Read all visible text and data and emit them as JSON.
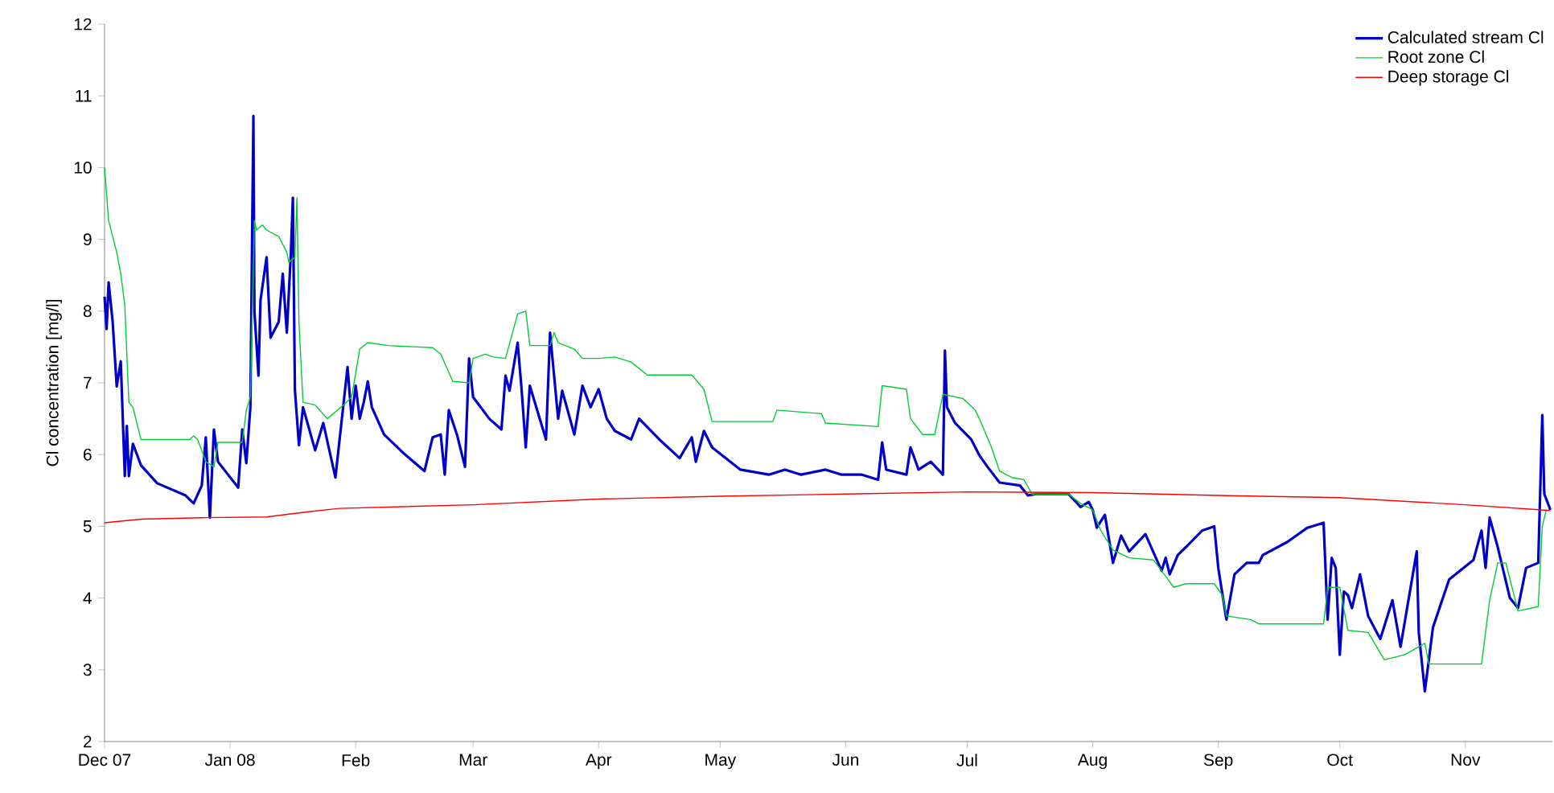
{
  "chart_data": {
    "type": "line",
    "ylabel": "Cl concentration [mg/l]",
    "xlim": [
      "2007-12-01",
      "2008-11-22T12:00"
    ],
    "ylim": [
      2,
      12
    ],
    "xticks": [
      {
        "value": "2007-12-01",
        "label": "Dec 07"
      },
      {
        "value": "2008-01-01",
        "label": "Jan 08"
      },
      {
        "value": "2008-02-01",
        "label": "Feb"
      },
      {
        "value": "2008-03-01",
        "label": "Mar"
      },
      {
        "value": "2008-04-01",
        "label": "Apr"
      },
      {
        "value": "2008-05-01",
        "label": "May"
      },
      {
        "value": "2008-06-01",
        "label": "Jun"
      },
      {
        "value": "2008-07-01",
        "label": "Jul"
      },
      {
        "value": "2008-08-01",
        "label": "Aug"
      },
      {
        "value": "2008-09-01",
        "label": "Sep"
      },
      {
        "value": "2008-10-01",
        "label": "Oct"
      },
      {
        "value": "2008-11-01",
        "label": "Nov"
      }
    ],
    "yticks": [
      2,
      3,
      4,
      5,
      6,
      7,
      8,
      9,
      10,
      11,
      12
    ],
    "legend": "top right",
    "series": [
      {
        "name": "Calculated stream Cl",
        "color": "#0000c8",
        "x": [
          "2007-12-01",
          "2007-12-01T12:00",
          "2007-12-02",
          "2007-12-03",
          "2007-12-04",
          "2007-12-05",
          "2007-12-06",
          "2007-12-06T12:00",
          "2007-12-07",
          "2007-12-08",
          "2007-12-09",
          "2007-12-10",
          "2007-12-14",
          "2007-12-21",
          "2007-12-23",
          "2007-12-25",
          "2007-12-26",
          "2007-12-27",
          "2007-12-28",
          "2007-12-29",
          "2008-01-03",
          "2008-01-04",
          "2008-01-05",
          "2008-01-06",
          "2008-01-06T18:00",
          "2008-01-07",
          "2008-01-08",
          "2008-01-08T12:00",
          "2008-01-10",
          "2008-01-11",
          "2008-01-13",
          "2008-01-14",
          "2008-01-15",
          "2008-01-16",
          "2008-01-16T12:00",
          "2008-01-17",
          "2008-01-18",
          "2008-01-19",
          "2008-01-22",
          "2008-01-24",
          "2008-01-27",
          "2008-01-30",
          "2008-01-31",
          "2008-02-01",
          "2008-02-02",
          "2008-02-03",
          "2008-02-04",
          "2008-02-05",
          "2008-02-08",
          "2008-02-13",
          "2008-02-18",
          "2008-02-20",
          "2008-02-22",
          "2008-02-23",
          "2008-02-24",
          "2008-02-26",
          "2008-02-28",
          "2008-02-29",
          "2008-03-01",
          "2008-03-05",
          "2008-03-08",
          "2008-03-09",
          "2008-03-10",
          "2008-03-12",
          "2008-03-13",
          "2008-03-14",
          "2008-03-15",
          "2008-03-19",
          "2008-03-20",
          "2008-03-22",
          "2008-03-23",
          "2008-03-26",
          "2008-03-28",
          "2008-03-30",
          "2008-04-01",
          "2008-04-03",
          "2008-04-05",
          "2008-04-09",
          "2008-04-11",
          "2008-04-16",
          "2008-04-21",
          "2008-04-24",
          "2008-04-25",
          "2008-04-27",
          "2008-04-29",
          "2008-05-06",
          "2008-05-13",
          "2008-05-17",
          "2008-05-21",
          "2008-05-27",
          "2008-05-31",
          "2008-06-05",
          "2008-06-09",
          "2008-06-10",
          "2008-06-11",
          "2008-06-16",
          "2008-06-17",
          "2008-06-19",
          "2008-06-22",
          "2008-06-25",
          "2008-06-25T12:00",
          "2008-06-26",
          "2008-06-28",
          "2008-07-02",
          "2008-07-04",
          "2008-07-06",
          "2008-07-09",
          "2008-07-14",
          "2008-07-16",
          "2008-07-18",
          "2008-07-26",
          "2008-07-29",
          "2008-07-31",
          "2008-08-01",
          "2008-08-02",
          "2008-08-04",
          "2008-08-06",
          "2008-08-08",
          "2008-08-10",
          "2008-08-14",
          "2008-08-18",
          "2008-08-19",
          "2008-08-20",
          "2008-08-22",
          "2008-08-24",
          "2008-08-28",
          "2008-08-31",
          "2008-09-01",
          "2008-09-03",
          "2008-09-05",
          "2008-09-08",
          "2008-09-11",
          "2008-09-12",
          "2008-09-18",
          "2008-09-23",
          "2008-09-27",
          "2008-09-28",
          "2008-09-29",
          "2008-09-30",
          "2008-10-01",
          "2008-10-02",
          "2008-10-03",
          "2008-10-04",
          "2008-10-06",
          "2008-10-08",
          "2008-10-11",
          "2008-10-14",
          "2008-10-16",
          "2008-10-20",
          "2008-10-20T12:00",
          "2008-10-22",
          "2008-10-24",
          "2008-10-28",
          "2008-11-03",
          "2008-11-05",
          "2008-11-06",
          "2008-11-07",
          "2008-11-09",
          "2008-11-12",
          "2008-11-14",
          "2008-11-16",
          "2008-11-19",
          "2008-11-20",
          "2008-11-20T12:00",
          "2008-11-22"
        ],
        "values": [
          8.2,
          7.75,
          8.4,
          7.85,
          6.95,
          7.3,
          5.7,
          6.4,
          5.7,
          6.15,
          6.0,
          5.85,
          5.6,
          5.43,
          5.32,
          5.57,
          6.24,
          5.12,
          6.35,
          5.9,
          5.54,
          6.35,
          5.88,
          6.66,
          10.72,
          8.0,
          7.1,
          8.15,
          8.75,
          7.63,
          7.85,
          8.52,
          7.7,
          8.8,
          9.58,
          6.9,
          6.13,
          6.66,
          6.06,
          6.44,
          5.68,
          7.22,
          6.5,
          6.96,
          6.5,
          6.73,
          7.02,
          6.66,
          6.28,
          6.01,
          5.77,
          6.24,
          6.28,
          5.72,
          6.62,
          6.28,
          5.83,
          7.34,
          6.8,
          6.5,
          6.35,
          7.1,
          6.89,
          7.56,
          6.89,
          6.1,
          6.96,
          6.21,
          7.7,
          6.5,
          6.89,
          6.28,
          6.96,
          6.66,
          6.91,
          6.5,
          6.33,
          6.21,
          6.5,
          6.21,
          5.95,
          6.24,
          5.9,
          6.33,
          6.1,
          5.79,
          5.72,
          5.79,
          5.72,
          5.79,
          5.72,
          5.72,
          5.65,
          6.17,
          5.79,
          5.72,
          6.1,
          5.79,
          5.9,
          5.72,
          7.45,
          6.66,
          6.44,
          6.21,
          5.99,
          5.83,
          5.61,
          5.57,
          5.43,
          5.45,
          5.45,
          5.27,
          5.34,
          5.23,
          4.98,
          5.16,
          4.49,
          4.87,
          4.65,
          4.89,
          4.38,
          4.56,
          4.33,
          4.6,
          4.71,
          4.94,
          5.0,
          4.42,
          3.7,
          4.33,
          4.49,
          4.49,
          4.6,
          4.78,
          4.98,
          5.05,
          3.7,
          4.56,
          4.42,
          3.21,
          4.09,
          4.04,
          3.86,
          4.33,
          3.75,
          3.43,
          3.97,
          3.32,
          4.65,
          3.52,
          2.7,
          3.59,
          4.26,
          4.53,
          4.94,
          4.42,
          5.12,
          4.71,
          4.0,
          3.86,
          4.42,
          4.49,
          6.55,
          5.45,
          5.23
        ]
      },
      {
        "name": "Root zone Cl",
        "color": "#00cc33",
        "x": [
          "2007-12-01",
          "2007-12-02",
          "2007-12-04",
          "2007-12-05",
          "2007-12-06",
          "2007-12-06T12:00",
          "2007-12-07",
          "2007-12-08",
          "2007-12-10",
          "2007-12-22",
          "2007-12-23",
          "2007-12-24",
          "2007-12-26",
          "2007-12-28",
          "2007-12-29",
          "2008-01-04",
          "2008-01-05",
          "2008-01-06",
          "2008-01-07",
          "2008-01-07T12:00",
          "2008-01-09",
          "2008-01-10",
          "2008-01-13",
          "2008-01-15",
          "2008-01-15T12:00",
          "2008-01-17",
          "2008-01-17T12:00",
          "2008-01-18",
          "2008-01-19",
          "2008-01-22",
          "2008-01-25",
          "2008-01-29",
          "2008-01-31",
          "2008-02-02",
          "2008-02-04",
          "2008-02-09",
          "2008-02-20",
          "2008-02-22",
          "2008-02-25",
          "2008-02-29",
          "2008-03-01",
          "2008-03-04",
          "2008-03-06",
          "2008-03-09",
          "2008-03-12",
          "2008-03-14",
          "2008-03-15",
          "2008-03-20",
          "2008-03-21",
          "2008-03-22",
          "2008-03-26",
          "2008-03-28",
          "2008-04-01",
          "2008-04-05",
          "2008-04-09",
          "2008-04-13",
          "2008-04-24",
          "2008-04-27",
          "2008-04-29",
          "2008-05-14",
          "2008-05-15",
          "2008-05-26",
          "2008-05-27",
          "2008-06-09",
          "2008-06-10",
          "2008-06-16",
          "2008-06-17",
          "2008-06-20",
          "2008-06-23",
          "2008-06-25",
          "2008-06-30",
          "2008-07-03",
          "2008-07-04",
          "2008-07-07",
          "2008-07-09",
          "2008-07-12",
          "2008-07-15",
          "2008-07-17",
          "2008-07-26",
          "2008-07-29",
          "2008-08-01",
          "2008-08-03",
          "2008-08-06",
          "2008-08-10",
          "2008-08-16",
          "2008-08-18",
          "2008-08-21",
          "2008-08-24",
          "2008-08-31",
          "2008-09-02",
          "2008-09-03",
          "2008-09-09",
          "2008-09-11",
          "2008-09-27",
          "2008-09-28",
          "2008-10-01",
          "2008-10-03",
          "2008-10-08",
          "2008-10-12",
          "2008-10-17",
          "2008-10-22",
          "2008-10-23",
          "2008-11-05",
          "2008-11-07",
          "2008-11-09",
          "2008-11-11",
          "2008-11-14",
          "2008-11-19",
          "2008-11-20",
          "2008-11-21"
        ],
        "values": [
          10.0,
          9.26,
          8.82,
          8.52,
          8.08,
          7.4,
          6.73,
          6.66,
          6.21,
          6.21,
          6.26,
          6.21,
          5.9,
          5.83,
          6.17,
          6.17,
          6.62,
          6.8,
          9.26,
          9.13,
          9.2,
          9.13,
          9.04,
          8.82,
          8.68,
          8.75,
          9.58,
          7.85,
          6.73,
          6.69,
          6.5,
          6.69,
          6.8,
          7.47,
          7.56,
          7.52,
          7.49,
          7.4,
          7.02,
          7.0,
          7.34,
          7.4,
          7.36,
          7.34,
          7.96,
          8.0,
          7.52,
          7.52,
          7.7,
          7.56,
          7.47,
          7.34,
          7.34,
          7.36,
          7.29,
          7.11,
          7.11,
          6.91,
          6.46,
          6.46,
          6.62,
          6.57,
          6.44,
          6.39,
          6.96,
          6.91,
          6.5,
          6.28,
          6.28,
          6.84,
          6.78,
          6.62,
          6.5,
          6.1,
          5.77,
          5.68,
          5.65,
          5.45,
          5.45,
          5.32,
          5.23,
          4.94,
          4.67,
          4.56,
          4.53,
          4.38,
          4.15,
          4.2,
          4.2,
          4.04,
          3.75,
          3.7,
          3.64,
          3.64,
          4.15,
          4.15,
          3.55,
          3.52,
          3.14,
          3.21,
          3.37,
          3.08,
          3.08,
          3.97,
          4.49,
          4.49,
          3.82,
          3.88,
          5.0,
          5.23
        ]
      },
      {
        "name": "Deep storage Cl",
        "color": "#ff0000",
        "x": [
          "2007-12-01",
          "2007-12-10",
          "2007-12-25",
          "2008-01-10",
          "2008-01-20",
          "2008-01-28",
          "2008-03-01",
          "2008-04-01",
          "2008-05-01",
          "2008-06-01",
          "2008-07-01",
          "2008-08-01",
          "2008-09-01",
          "2008-10-01",
          "2008-11-01",
          "2008-11-22"
        ],
        "values": [
          5.05,
          5.1,
          5.12,
          5.13,
          5.2,
          5.25,
          5.3,
          5.38,
          5.42,
          5.45,
          5.48,
          5.47,
          5.43,
          5.4,
          5.3,
          5.22
        ]
      }
    ]
  }
}
